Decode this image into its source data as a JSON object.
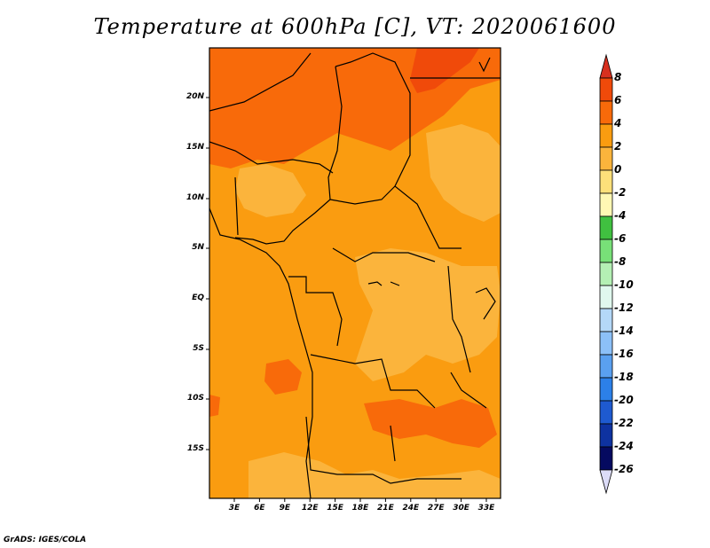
{
  "title": "Temperature at 600hPa [C], VT: 2020061600",
  "footer": "GrADS: IGES/COLA",
  "map": {
    "lat_ticks": [
      "20N",
      "15N",
      "10N",
      "5N",
      "EQ",
      "5S",
      "10S",
      "15S"
    ],
    "lon_ticks": [
      "3E",
      "6E",
      "9E",
      "12E",
      "15E",
      "18E",
      "21E",
      "24E",
      "27E",
      "30E",
      "33E"
    ]
  },
  "colorbar": {
    "labels": [
      "8",
      "6",
      "4",
      "2",
      "0",
      "-2",
      "-4",
      "-6",
      "-8",
      "-10",
      "-12",
      "-14",
      "-16",
      "-18",
      "-20",
      "-22",
      "-24",
      "-26"
    ],
    "colors": [
      "#d7301f",
      "#f04a0a",
      "#f86a0a",
      "#fa9c10",
      "#fbb43c",
      "#fde07a",
      "#fff8b4",
      "#40c040",
      "#78e078",
      "#b4f0b4",
      "#e0f8ee",
      "#b4d8f8",
      "#8cc0f8",
      "#5aa0f0",
      "#2c80e8",
      "#1e5ad0",
      "#0e32a0",
      "#050a60",
      "#dcdcf8"
    ]
  }
}
